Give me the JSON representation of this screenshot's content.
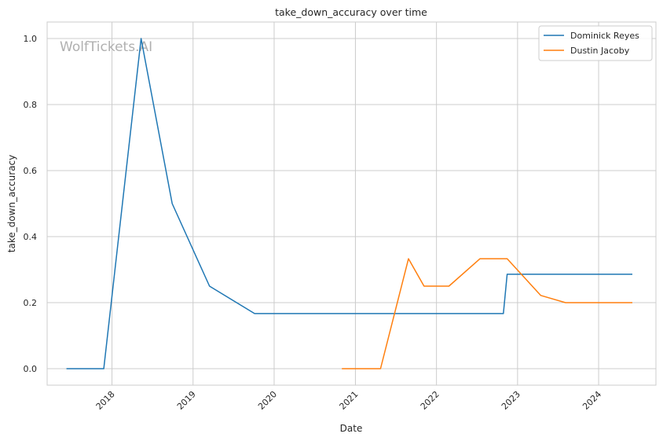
{
  "chart_data": {
    "type": "line",
    "title": "take_down_accuracy over time",
    "xlabel": "Date",
    "ylabel": "take_down_accuracy",
    "watermark": "WolfTickets.AI",
    "xlim": [
      "2017-03-15",
      "2024-09-15"
    ],
    "ylim": [
      -0.05,
      1.05
    ],
    "x_ticks": [
      "2018",
      "2019",
      "2020",
      "2021",
      "2022",
      "2023",
      "2024"
    ],
    "y_ticks": [
      "0.0",
      "0.2",
      "0.4",
      "0.6",
      "0.8",
      "1.0"
    ],
    "grid": true,
    "legend": "top-right",
    "series": [
      {
        "name": "Dominick Reyes",
        "color": "#1f77b4",
        "points": [
          [
            "2017-06-10",
            0.0
          ],
          [
            "2017-11-25",
            0.0
          ],
          [
            "2018-05-12",
            1.0
          ],
          [
            "2018-09-29",
            0.5
          ],
          [
            "2019-03-16",
            0.25
          ],
          [
            "2019-10-05",
            0.167
          ],
          [
            "2022-10-29",
            0.167
          ],
          [
            "2022-11-15",
            0.286
          ],
          [
            "2024-06-01",
            0.286
          ]
        ]
      },
      {
        "name": "Dustin Jacoby",
        "color": "#ff7f0e",
        "points": [
          [
            "2020-11-01",
            0.0
          ],
          [
            "2021-04-24",
            0.0
          ],
          [
            "2021-08-28",
            0.333
          ],
          [
            "2021-11-06",
            0.25
          ],
          [
            "2022-02-26",
            0.25
          ],
          [
            "2022-07-16",
            0.333
          ],
          [
            "2022-11-15",
            0.333
          ],
          [
            "2023-04-15",
            0.222
          ],
          [
            "2023-08-05",
            0.2
          ],
          [
            "2024-06-01",
            0.2
          ]
        ]
      }
    ]
  }
}
